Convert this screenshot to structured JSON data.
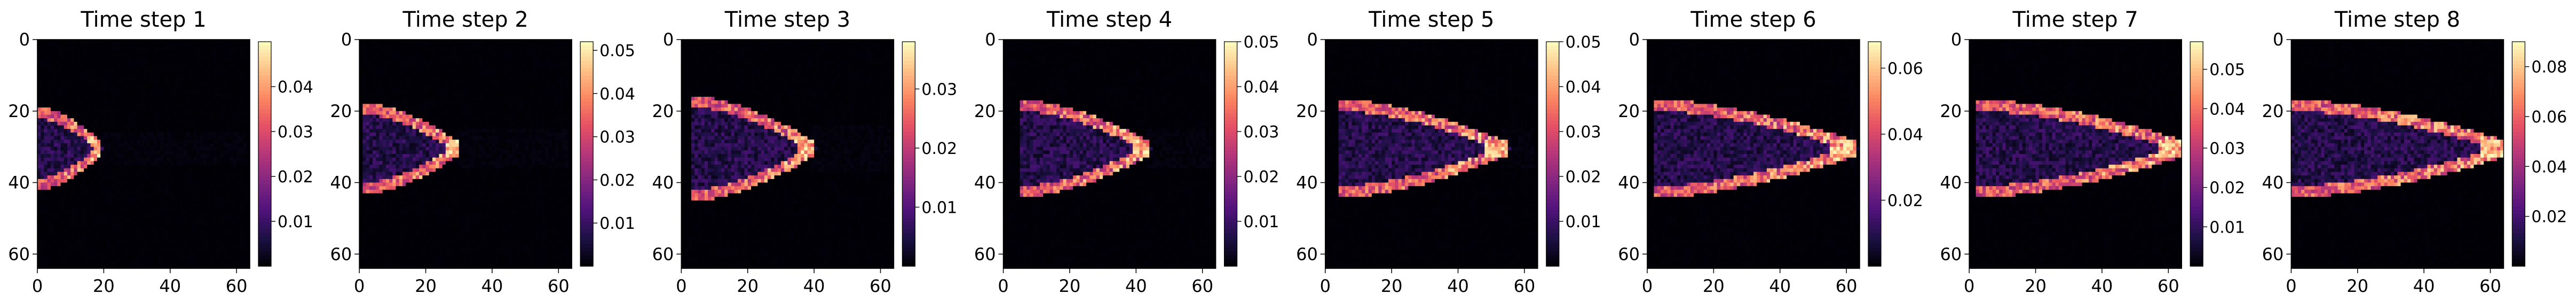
{
  "chart_data": [
    {
      "type": "heatmap",
      "title": "Time step 1",
      "grid": false,
      "xlim": [
        0,
        64
      ],
      "ylim": [
        64,
        0
      ],
      "x_ticks": [
        "0",
        "20",
        "40",
        "60"
      ],
      "y_ticks": [
        "0",
        "20",
        "40",
        "60"
      ],
      "colorbar": {
        "colormap": "magma",
        "range": [
          0,
          0.05
        ],
        "ticks": [
          "0.01",
          "0.02",
          "0.03",
          "0.04"
        ]
      },
      "pattern": {
        "shape": "arrow",
        "tip_x": 18,
        "center_y": 30,
        "half_height": 10,
        "tail_x": 0,
        "peak": 0.048
      }
    },
    {
      "type": "heatmap",
      "title": "Time step 2",
      "grid": false,
      "xlim": [
        0,
        64
      ],
      "ylim": [
        64,
        0
      ],
      "x_ticks": [
        "0",
        "20",
        "40",
        "60"
      ],
      "y_ticks": [
        "0",
        "20",
        "40",
        "60"
      ],
      "colorbar": {
        "colormap": "magma",
        "range": [
          0,
          0.052
        ],
        "ticks": [
          "0.01",
          "0.02",
          "0.03",
          "0.04",
          "0.05"
        ]
      },
      "pattern": {
        "shape": "arrow",
        "tip_x": 28,
        "center_y": 30,
        "half_height": 11,
        "tail_x": 2,
        "peak": 0.05
      }
    },
    {
      "type": "heatmap",
      "title": "Time step 3",
      "grid": false,
      "xlim": [
        0,
        64
      ],
      "ylim": [
        64,
        0
      ],
      "x_ticks": [
        "0",
        "20",
        "40",
        "60"
      ],
      "y_ticks": [
        "0",
        "20",
        "40",
        "60"
      ],
      "colorbar": {
        "colormap": "magma",
        "range": [
          0,
          0.038
        ],
        "ticks": [
          "0.01",
          "0.02",
          "0.03"
        ]
      },
      "pattern": {
        "shape": "arrow",
        "tip_x": 38,
        "center_y": 30,
        "half_height": 13,
        "tail_x": 4,
        "peak": 0.036
      }
    },
    {
      "type": "heatmap",
      "title": "Time step 4",
      "grid": false,
      "xlim": [
        0,
        64
      ],
      "ylim": [
        64,
        0
      ],
      "x_ticks": [
        "0",
        "20",
        "40",
        "60"
      ],
      "y_ticks": [
        "0",
        "20",
        "40",
        "60"
      ],
      "colorbar": {
        "colormap": "magma",
        "range": [
          0,
          0.05
        ],
        "ticks": [
          "0.01",
          "0.02",
          "0.03",
          "0.04",
          "0.05"
        ]
      },
      "pattern": {
        "shape": "arrow",
        "tip_x": 42,
        "center_y": 30,
        "half_height": 12,
        "tail_x": 6,
        "peak": 0.048
      }
    },
    {
      "type": "heatmap",
      "title": "Time step 5",
      "grid": false,
      "xlim": [
        0,
        64
      ],
      "ylim": [
        64,
        0
      ],
      "x_ticks": [
        "0",
        "20",
        "40",
        "60"
      ],
      "y_ticks": [
        "0",
        "20",
        "40",
        "60"
      ],
      "colorbar": {
        "colormap": "magma",
        "range": [
          0,
          0.05
        ],
        "ticks": [
          "0.01",
          "0.02",
          "0.03",
          "0.04",
          "0.05"
        ]
      },
      "pattern": {
        "shape": "arrow",
        "tip_x": 52,
        "center_y": 30,
        "half_height": 12,
        "tail_x": 6,
        "peak": 0.05
      }
    },
    {
      "type": "heatmap",
      "title": "Time step 6",
      "grid": false,
      "xlim": [
        0,
        64
      ],
      "ylim": [
        64,
        0
      ],
      "x_ticks": [
        "0",
        "20",
        "40",
        "60"
      ],
      "y_ticks": [
        "0",
        "20",
        "40",
        "60"
      ],
      "colorbar": {
        "colormap": "magma",
        "range": [
          0,
          0.068
        ],
        "ticks": [
          "0.02",
          "0.04",
          "0.06"
        ]
      },
      "pattern": {
        "shape": "arrow",
        "tip_x": 60,
        "center_y": 30,
        "half_height": 12,
        "tail_x": 4,
        "peak": 0.066
      }
    },
    {
      "type": "heatmap",
      "title": "Time step 7",
      "grid": false,
      "xlim": [
        0,
        64
      ],
      "ylim": [
        64,
        0
      ],
      "x_ticks": [
        "0",
        "20",
        "40",
        "60"
      ],
      "y_ticks": [
        "0",
        "20",
        "40",
        "60"
      ],
      "colorbar": {
        "colormap": "magma",
        "range": [
          0,
          0.057
        ],
        "ticks": [
          "0.01",
          "0.02",
          "0.03",
          "0.04",
          "0.05"
        ]
      },
      "pattern": {
        "shape": "arrow",
        "tip_x": 62,
        "center_y": 30,
        "half_height": 12,
        "tail_x": 4,
        "peak": 0.055
      }
    },
    {
      "type": "heatmap",
      "title": "Time step 8",
      "grid": false,
      "xlim": [
        0,
        64
      ],
      "ylim": [
        64,
        0
      ],
      "x_ticks": [
        "0",
        "20",
        "40",
        "60"
      ],
      "y_ticks": [
        "0",
        "20",
        "40",
        "60"
      ],
      "colorbar": {
        "colormap": "magma",
        "range": [
          0,
          0.09
        ],
        "ticks": [
          "0.02",
          "0.04",
          "0.06",
          "0.08"
        ]
      },
      "pattern": {
        "shape": "arrow",
        "tip_x": 62,
        "center_y": 30,
        "half_height": 12,
        "tail_x": 2,
        "peak": 0.09
      }
    }
  ]
}
